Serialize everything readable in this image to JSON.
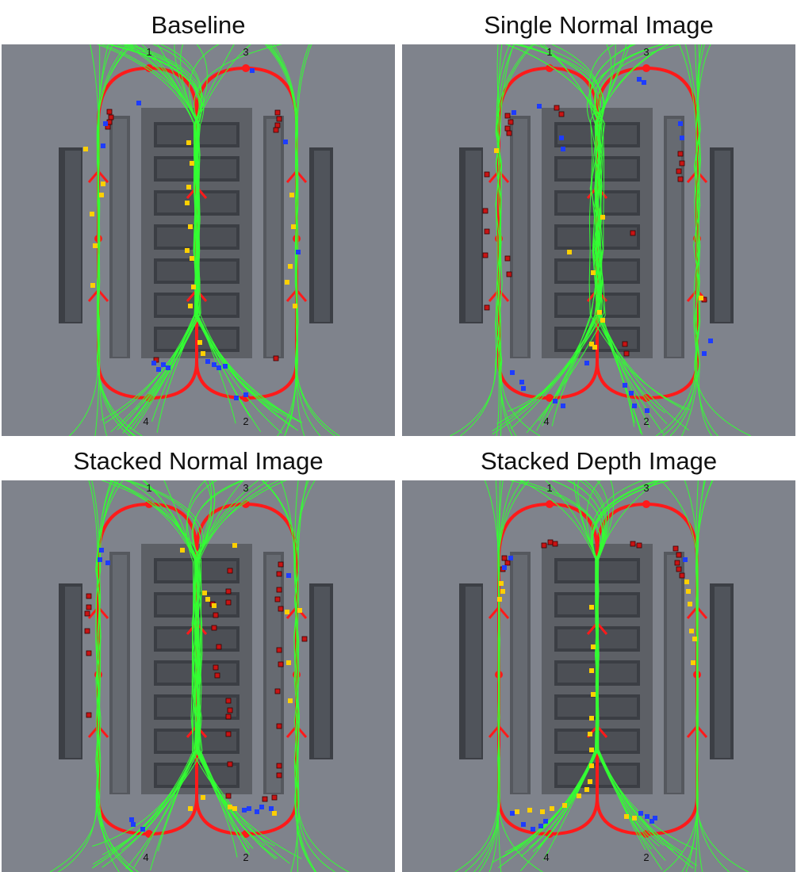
{
  "panels": [
    {
      "title": "Baseline",
      "labels": [
        "1",
        "3",
        "4",
        "2"
      ]
    },
    {
      "title": "Single Normal Image",
      "labels": [
        "1",
        "3",
        "4",
        "2"
      ]
    },
    {
      "title": "Stacked Normal Image",
      "labels": [
        "1",
        "3",
        "4",
        "2"
      ]
    },
    {
      "title": "Stacked Depth Image",
      "labels": [
        "1",
        "3",
        "4",
        "2"
      ]
    }
  ],
  "colors": {
    "background": "#7f838c",
    "track": "#ff1a1a",
    "trajectory": "#33ff33",
    "marker_red": "#c81414",
    "marker_yellow": "#ffd000",
    "marker_blue": "#1e3cff"
  }
}
